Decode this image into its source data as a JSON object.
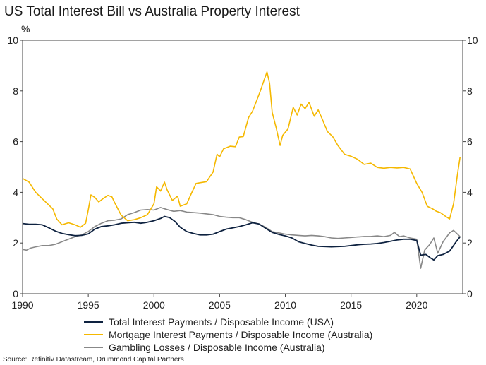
{
  "chart_data": {
    "type": "line",
    "title": "US Total Interest Bill vs Australia Property Interest",
    "unit_label": "%",
    "source": "Source: Refinitiv Datastream, Drummond Capital Partners",
    "xlim": [
      1990,
      2023.5
    ],
    "ylim": [
      0,
      10
    ],
    "x_ticks": [
      "1990",
      "1995",
      "2000",
      "2005",
      "2010",
      "2015",
      "2020"
    ],
    "y_ticks_left": [
      "0",
      "2",
      "4",
      "6",
      "8",
      "10"
    ],
    "y_ticks_right": [
      "0",
      "2",
      "4",
      "6",
      "8",
      "10"
    ],
    "colors": {
      "usa": "#0e2240",
      "mortgage": "#f5b800",
      "gambling": "#888888"
    },
    "series": [
      {
        "name": "Total Interest Payments / Disposable Income (USA)",
        "key": "usa",
        "points": [
          [
            1990,
            2.77
          ],
          [
            1990.5,
            2.74
          ],
          [
            1991,
            2.74
          ],
          [
            1991.5,
            2.72
          ],
          [
            1992,
            2.6
          ],
          [
            1992.5,
            2.47
          ],
          [
            1993,
            2.38
          ],
          [
            1993.5,
            2.33
          ],
          [
            1994,
            2.29
          ],
          [
            1994.5,
            2.3
          ],
          [
            1995,
            2.36
          ],
          [
            1995.5,
            2.55
          ],
          [
            1996,
            2.65
          ],
          [
            1996.5,
            2.68
          ],
          [
            1997,
            2.72
          ],
          [
            1997.5,
            2.78
          ],
          [
            1998,
            2.8
          ],
          [
            1998.5,
            2.82
          ],
          [
            1999,
            2.78
          ],
          [
            1999.5,
            2.82
          ],
          [
            2000,
            2.88
          ],
          [
            2000.5,
            2.97
          ],
          [
            2000.8,
            3.05
          ],
          [
            2001.2,
            3.0
          ],
          [
            2001.6,
            2.85
          ],
          [
            2002,
            2.62
          ],
          [
            2002.5,
            2.45
          ],
          [
            2003,
            2.38
          ],
          [
            2003.5,
            2.32
          ],
          [
            2004,
            2.32
          ],
          [
            2004.5,
            2.35
          ],
          [
            2005,
            2.45
          ],
          [
            2005.5,
            2.55
          ],
          [
            2006,
            2.6
          ],
          [
            2006.5,
            2.65
          ],
          [
            2007,
            2.72
          ],
          [
            2007.5,
            2.8
          ],
          [
            2008,
            2.75
          ],
          [
            2008.5,
            2.58
          ],
          [
            2009,
            2.42
          ],
          [
            2009.5,
            2.34
          ],
          [
            2010,
            2.28
          ],
          [
            2010.5,
            2.2
          ],
          [
            2011,
            2.05
          ],
          [
            2011.5,
            1.98
          ],
          [
            2012,
            1.92
          ],
          [
            2012.5,
            1.87
          ],
          [
            2013,
            1.86
          ],
          [
            2013.5,
            1.85
          ],
          [
            2014,
            1.86
          ],
          [
            2014.5,
            1.87
          ],
          [
            2015,
            1.9
          ],
          [
            2015.5,
            1.93
          ],
          [
            2016,
            1.95
          ],
          [
            2016.5,
            1.96
          ],
          [
            2017,
            1.98
          ],
          [
            2017.5,
            2.02
          ],
          [
            2018,
            2.07
          ],
          [
            2018.5,
            2.12
          ],
          [
            2019,
            2.15
          ],
          [
            2019.5,
            2.15
          ],
          [
            2020,
            2.1
          ],
          [
            2020.3,
            1.52
          ],
          [
            2020.7,
            1.55
          ],
          [
            2021,
            1.43
          ],
          [
            2021.3,
            1.33
          ],
          [
            2021.6,
            1.5
          ],
          [
            2022,
            1.55
          ],
          [
            2022.5,
            1.68
          ],
          [
            2023,
            2.05
          ],
          [
            2023.3,
            2.25
          ]
        ]
      },
      {
        "name": "Mortgage Interest Payments / Disposable Income (Australia)",
        "key": "mortgage",
        "points": [
          [
            1990,
            4.55
          ],
          [
            1990.5,
            4.4
          ],
          [
            1991,
            4.0
          ],
          [
            1991.5,
            3.75
          ],
          [
            1992,
            3.5
          ],
          [
            1992.3,
            3.35
          ],
          [
            1992.6,
            2.95
          ],
          [
            1993,
            2.72
          ],
          [
            1993.5,
            2.8
          ],
          [
            1994,
            2.72
          ],
          [
            1994.4,
            2.62
          ],
          [
            1994.8,
            2.78
          ],
          [
            1995,
            3.3
          ],
          [
            1995.2,
            3.9
          ],
          [
            1995.5,
            3.8
          ],
          [
            1995.8,
            3.62
          ],
          [
            1996.2,
            3.78
          ],
          [
            1996.5,
            3.88
          ],
          [
            1996.8,
            3.82
          ],
          [
            1997,
            3.6
          ],
          [
            1997.5,
            3.1
          ],
          [
            1998,
            2.88
          ],
          [
            1998.5,
            2.92
          ],
          [
            1999,
            3.0
          ],
          [
            1999.5,
            3.12
          ],
          [
            2000,
            3.55
          ],
          [
            2000.2,
            4.22
          ],
          [
            2000.5,
            4.05
          ],
          [
            2000.8,
            4.4
          ],
          [
            2001,
            4.1
          ],
          [
            2001.4,
            3.68
          ],
          [
            2001.8,
            3.85
          ],
          [
            2002,
            3.45
          ],
          [
            2002.5,
            3.55
          ],
          [
            2002.8,
            3.9
          ],
          [
            2003.2,
            4.35
          ],
          [
            2003.5,
            4.38
          ],
          [
            2004,
            4.42
          ],
          [
            2004.5,
            4.8
          ],
          [
            2004.8,
            5.5
          ],
          [
            2005,
            5.4
          ],
          [
            2005.3,
            5.72
          ],
          [
            2005.8,
            5.82
          ],
          [
            2006.2,
            5.8
          ],
          [
            2006.5,
            6.18
          ],
          [
            2006.8,
            6.2
          ],
          [
            2007.2,
            6.95
          ],
          [
            2007.5,
            7.2
          ],
          [
            2007.8,
            7.6
          ],
          [
            2008.1,
            8.0
          ],
          [
            2008.4,
            8.45
          ],
          [
            2008.6,
            8.75
          ],
          [
            2008.8,
            8.3
          ],
          [
            2009,
            7.15
          ],
          [
            2009.3,
            6.55
          ],
          [
            2009.6,
            5.85
          ],
          [
            2009.8,
            6.25
          ],
          [
            2010.2,
            6.5
          ],
          [
            2010.6,
            7.35
          ],
          [
            2010.9,
            7.05
          ],
          [
            2011.2,
            7.48
          ],
          [
            2011.5,
            7.3
          ],
          [
            2011.8,
            7.55
          ],
          [
            2012.2,
            7.0
          ],
          [
            2012.5,
            7.25
          ],
          [
            2012.8,
            6.9
          ],
          [
            2013.2,
            6.4
          ],
          [
            2013.6,
            6.2
          ],
          [
            2014,
            5.85
          ],
          [
            2014.5,
            5.5
          ],
          [
            2015,
            5.42
          ],
          [
            2015.5,
            5.3
          ],
          [
            2016,
            5.1
          ],
          [
            2016.5,
            5.15
          ],
          [
            2017,
            4.98
          ],
          [
            2017.5,
            4.95
          ],
          [
            2018,
            4.98
          ],
          [
            2018.5,
            4.96
          ],
          [
            2019,
            4.98
          ],
          [
            2019.5,
            4.92
          ],
          [
            2020,
            4.35
          ],
          [
            2020.4,
            4.0
          ],
          [
            2020.8,
            3.45
          ],
          [
            2021.2,
            3.35
          ],
          [
            2021.5,
            3.25
          ],
          [
            2021.8,
            3.2
          ],
          [
            2022.2,
            3.05
          ],
          [
            2022.5,
            2.95
          ],
          [
            2022.8,
            3.55
          ],
          [
            2023.1,
            4.7
          ],
          [
            2023.3,
            5.4
          ]
        ]
      },
      {
        "name": "Gambling Losses / Disposable Income (Australia)",
        "key": "gambling",
        "points": [
          [
            1990,
            1.75
          ],
          [
            1990.3,
            1.72
          ],
          [
            1990.6,
            1.8
          ],
          [
            1991,
            1.85
          ],
          [
            1991.5,
            1.9
          ],
          [
            1992,
            1.9
          ],
          [
            1992.5,
            1.95
          ],
          [
            1993,
            2.05
          ],
          [
            1993.5,
            2.15
          ],
          [
            1994,
            2.25
          ],
          [
            1994.5,
            2.32
          ],
          [
            1995,
            2.45
          ],
          [
            1995.5,
            2.65
          ],
          [
            1996,
            2.78
          ],
          [
            1996.5,
            2.88
          ],
          [
            1997,
            2.9
          ],
          [
            1997.5,
            2.95
          ],
          [
            1998,
            3.12
          ],
          [
            1998.5,
            3.2
          ],
          [
            1999,
            3.3
          ],
          [
            1999.5,
            3.32
          ],
          [
            2000,
            3.3
          ],
          [
            2000.5,
            3.4
          ],
          [
            2001,
            3.32
          ],
          [
            2001.5,
            3.25
          ],
          [
            2002,
            3.28
          ],
          [
            2002.5,
            3.22
          ],
          [
            2003,
            3.2
          ],
          [
            2003.5,
            3.18
          ],
          [
            2004,
            3.15
          ],
          [
            2004.5,
            3.12
          ],
          [
            2005,
            3.05
          ],
          [
            2005.5,
            3.02
          ],
          [
            2006,
            3.0
          ],
          [
            2006.5,
            3.0
          ],
          [
            2007,
            2.92
          ],
          [
            2007.5,
            2.82
          ],
          [
            2008,
            2.75
          ],
          [
            2008.5,
            2.62
          ],
          [
            2009,
            2.45
          ],
          [
            2009.5,
            2.4
          ],
          [
            2010,
            2.35
          ],
          [
            2010.5,
            2.32
          ],
          [
            2011,
            2.3
          ],
          [
            2011.5,
            2.28
          ],
          [
            2012,
            2.3
          ],
          [
            2012.5,
            2.28
          ],
          [
            2013,
            2.25
          ],
          [
            2013.5,
            2.2
          ],
          [
            2014,
            2.18
          ],
          [
            2014.5,
            2.2
          ],
          [
            2015,
            2.22
          ],
          [
            2015.5,
            2.24
          ],
          [
            2016,
            2.26
          ],
          [
            2016.5,
            2.26
          ],
          [
            2017,
            2.28
          ],
          [
            2017.5,
            2.25
          ],
          [
            2018,
            2.3
          ],
          [
            2018.3,
            2.42
          ],
          [
            2018.7,
            2.25
          ],
          [
            2019,
            2.28
          ],
          [
            2019.5,
            2.2
          ],
          [
            2020,
            2.15
          ],
          [
            2020.3,
            1.0
          ],
          [
            2020.6,
            1.72
          ],
          [
            2021,
            1.95
          ],
          [
            2021.3,
            2.2
          ],
          [
            2021.6,
            1.6
          ],
          [
            2022,
            2.05
          ],
          [
            2022.5,
            2.4
          ],
          [
            2022.8,
            2.5
          ],
          [
            2023.3,
            2.25
          ]
        ]
      }
    ],
    "legend": [
      {
        "label": "Total Interest Payments / Disposable Income (USA)",
        "key": "usa"
      },
      {
        "label": "Mortgage Interest Payments / Disposable Income (Australia)",
        "key": "mortgage"
      },
      {
        "label": "Gambling Losses / Disposable Income (Australia)",
        "key": "gambling"
      }
    ]
  }
}
